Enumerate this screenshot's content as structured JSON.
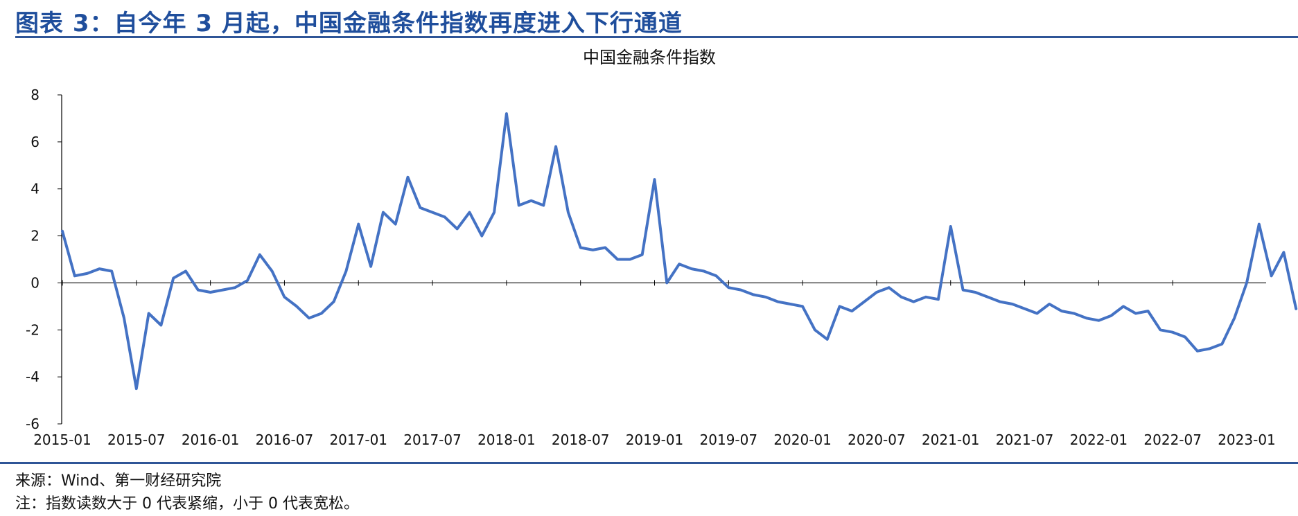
{
  "header": {
    "figure_title": "图表 3：自今年 3 月起，中国金融条件指数再度进入下行通道"
  },
  "footer": {
    "source": "来源：Wind、第一财经研究院",
    "note": "注：指数读数大于 0 代表紧缩，小于 0 代表宽松。"
  },
  "colors": {
    "accent": "#2f5597",
    "title": "#1f4e9c",
    "series": "#4472c4"
  },
  "chart_data": {
    "type": "line",
    "title": "中国金融条件指数",
    "xlabel": "",
    "ylabel": "",
    "ylim": [
      -6,
      8
    ],
    "yticks": [
      "8",
      "6",
      "4",
      "2",
      "0",
      "-2",
      "-4",
      "-6"
    ],
    "ytick_values": [
      8,
      6,
      4,
      2,
      0,
      -2,
      -4,
      -6
    ],
    "xticks": [
      "2015-01",
      "2015-07",
      "2016-01",
      "2016-07",
      "2017-01",
      "2017-07",
      "2018-01",
      "2018-07",
      "2019-01",
      "2019-07",
      "2020-01",
      "2020-07",
      "2021-01",
      "2021-07",
      "2022-01",
      "2022-07",
      "2023-01"
    ],
    "grid": false,
    "legend": "none",
    "series": [
      {
        "name": "",
        "x": [
          "2015-01",
          "2015-02",
          "2015-03",
          "2015-04",
          "2015-05",
          "2015-06",
          "2015-07",
          "2015-08",
          "2015-09",
          "2015-10",
          "2015-11",
          "2015-12",
          "2016-01",
          "2016-02",
          "2016-03",
          "2016-04",
          "2016-05",
          "2016-06",
          "2016-07",
          "2016-08",
          "2016-09",
          "2016-10",
          "2016-11",
          "2016-12",
          "2017-01",
          "2017-02",
          "2017-03",
          "2017-04",
          "2017-05",
          "2017-06",
          "2017-07",
          "2017-08",
          "2017-09",
          "2017-10",
          "2017-11",
          "2017-12",
          "2018-01",
          "2018-02",
          "2018-03",
          "2018-04",
          "2018-05",
          "2018-06",
          "2018-07",
          "2018-08",
          "2018-09",
          "2018-10",
          "2018-11",
          "2018-12",
          "2019-01",
          "2019-02",
          "2019-03",
          "2019-04",
          "2019-05",
          "2019-06",
          "2019-07",
          "2019-08",
          "2019-09",
          "2019-10",
          "2019-11",
          "2019-12",
          "2020-01",
          "2020-02",
          "2020-03",
          "2020-04",
          "2020-05",
          "2020-06",
          "2020-07",
          "2020-08",
          "2020-09",
          "2020-10",
          "2020-11",
          "2020-12",
          "2021-01",
          "2021-02",
          "2021-03",
          "2021-04",
          "2021-05",
          "2021-06",
          "2021-07",
          "2021-08",
          "2021-09",
          "2021-10",
          "2021-11",
          "2021-12",
          "2022-01",
          "2022-02",
          "2022-03",
          "2022-04",
          "2022-05",
          "2022-06",
          "2022-07",
          "2022-08",
          "2022-09",
          "2022-10",
          "2022-11",
          "2022-12",
          "2023-01",
          "2023-02",
          "2023-03",
          "2023-04",
          "2023-05"
        ],
        "values": [
          2.2,
          0.3,
          0.4,
          0.6,
          0.5,
          -1.5,
          -4.5,
          -1.3,
          -1.8,
          0.2,
          0.5,
          -0.3,
          -0.4,
          -0.3,
          -0.2,
          0.1,
          1.2,
          0.5,
          -0.6,
          -1.0,
          -1.5,
          -1.3,
          -0.8,
          0.5,
          2.5,
          0.7,
          3.0,
          2.5,
          4.5,
          3.2,
          3.0,
          2.8,
          2.3,
          3.0,
          2.0,
          3.0,
          7.2,
          3.3,
          3.5,
          3.3,
          5.8,
          3.0,
          1.5,
          1.4,
          1.5,
          1.0,
          1.0,
          1.2,
          4.4,
          0.0,
          0.8,
          0.6,
          0.5,
          0.3,
          -0.2,
          -0.3,
          -0.5,
          -0.6,
          -0.8,
          -0.9,
          -1.0,
          -2.0,
          -2.4,
          -1.0,
          -1.2,
          -0.8,
          -0.4,
          -0.2,
          -0.6,
          -0.8,
          -0.6,
          -0.7,
          2.4,
          -0.3,
          -0.4,
          -0.6,
          -0.8,
          -0.9,
          -1.1,
          -1.3,
          -0.9,
          -1.2,
          -1.3,
          -1.5,
          -1.6,
          -1.4,
          -1.0,
          -1.3,
          -1.2,
          -2.0,
          -2.1,
          -2.3,
          -2.9,
          -2.8,
          -2.6,
          -1.5,
          0.0,
          2.5,
          0.3,
          1.3,
          -1.1
        ]
      }
    ]
  }
}
